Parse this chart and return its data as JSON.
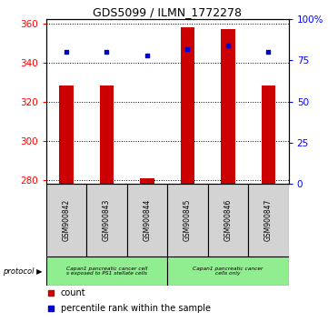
{
  "title": "GDS5099 / ILMN_1772278",
  "samples": [
    "GSM900842",
    "GSM900843",
    "GSM900844",
    "GSM900845",
    "GSM900846",
    "GSM900847"
  ],
  "counts": [
    328,
    328,
    281,
    358,
    357,
    328
  ],
  "percentiles": [
    80,
    80,
    78,
    82,
    84,
    80
  ],
  "ylim_left": [
    278,
    362
  ],
  "ylim_right": [
    0,
    100
  ],
  "yticks_left": [
    280,
    300,
    320,
    340,
    360
  ],
  "yticks_right": [
    0,
    25,
    50,
    75,
    100
  ],
  "ytick_labels_right": [
    "0",
    "25",
    "50",
    "75",
    "100%"
  ],
  "bar_color": "#cc0000",
  "dot_color": "#0000cc",
  "bar_bottom": 278,
  "protocol_label_0": "Capan1 pancreatic cancer cell\ns exposed to PS1 stellate cells",
  "protocol_label_1": "Capan1 pancreatic cancer\ncells only",
  "protocol_color": "#90ee90",
  "sample_box_color": "#d3d3d3",
  "legend_count_label": "count",
  "legend_pct_label": "percentile rank within the sample",
  "protocol_text": "protocol",
  "figsize": [
    3.61,
    3.54
  ],
  "dpi": 100
}
